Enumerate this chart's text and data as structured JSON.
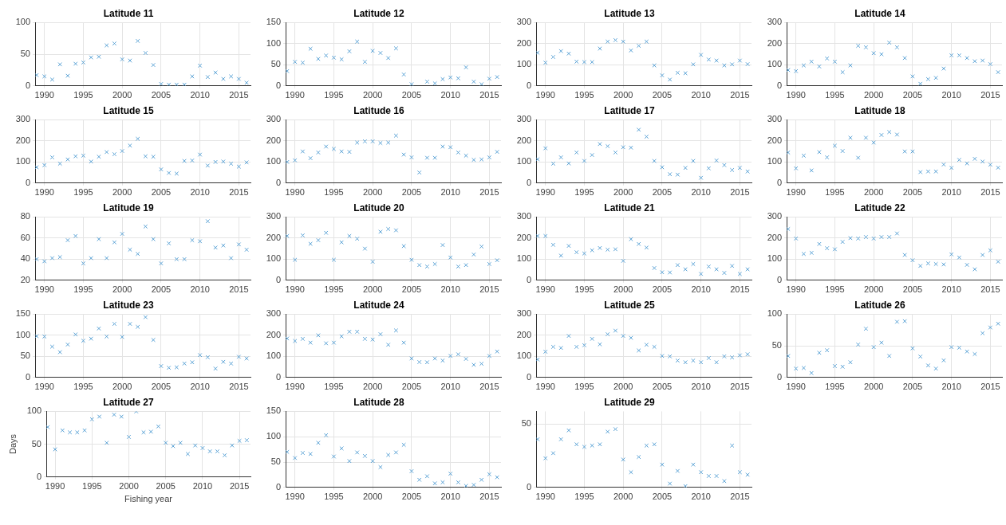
{
  "chart_data": [
    {
      "type": "scatter",
      "title": "Latitude 11",
      "x": [
        1989,
        1990,
        1991,
        1992,
        1993,
        1994,
        1995,
        1996,
        1997,
        1998,
        1999,
        2000,
        2001,
        2002,
        2003,
        2004,
        2005,
        2006,
        2007,
        2008,
        2009,
        2010,
        2011,
        2012,
        2013,
        2014,
        2015,
        2016
      ],
      "values": [
        17,
        15,
        10,
        34,
        16,
        35,
        37,
        45,
        46,
        64,
        67,
        42,
        40,
        71,
        52,
        33,
        3,
        2,
        2,
        2,
        15,
        32,
        14,
        21,
        11,
        15,
        11,
        5
      ],
      "color": "#5ba3d6",
      "marker": "cross",
      "xlim": [
        1988.8,
        2016.5
      ],
      "xticks": [
        1990,
        1995,
        2000,
        2005,
        2010,
        2015
      ],
      "ylim": [
        0,
        100
      ],
      "yticks": [
        0,
        50,
        100
      ],
      "grid": true
    },
    {
      "type": "scatter",
      "title": "Latitude 12",
      "x": [
        1989,
        1990,
        1991,
        1992,
        1993,
        1994,
        1995,
        1996,
        1997,
        1998,
        1999,
        2000,
        2001,
        2002,
        2003,
        2004,
        2005,
        2006,
        2007,
        2008,
        2009,
        2010,
        2011,
        2012,
        2013,
        2014,
        2015,
        2016
      ],
      "values": [
        35,
        57,
        55,
        88,
        64,
        72,
        67,
        63,
        82,
        105,
        57,
        83,
        78,
        66,
        89,
        27,
        4,
        null,
        10,
        6,
        16,
        20,
        18,
        44,
        10,
        4,
        17,
        21
      ],
      "color": "#5ba3d6",
      "marker": "cross",
      "xlim": [
        1988.8,
        2016.5
      ],
      "xticks": [
        1990,
        1995,
        2000,
        2005,
        2010,
        2015
      ],
      "ylim": [
        0,
        150
      ],
      "yticks": [
        0,
        50,
        100,
        150
      ],
      "grid": true
    },
    {
      "type": "scatter",
      "title": "Latitude 13",
      "x": [
        1989,
        1990,
        1991,
        1992,
        1993,
        1994,
        1995,
        1996,
        1997,
        1998,
        1999,
        2000,
        2001,
        2002,
        2003,
        2004,
        2005,
        2006,
        2007,
        2008,
        2009,
        2010,
        2011,
        2012,
        2013,
        2014,
        2015,
        2016
      ],
      "values": [
        157,
        110,
        137,
        165,
        153,
        115,
        113,
        113,
        177,
        210,
        217,
        210,
        168,
        190,
        210,
        97,
        50,
        30,
        62,
        60,
        102,
        147,
        125,
        120,
        97,
        102,
        120,
        103
      ],
      "color": "#5ba3d6",
      "marker": "cross",
      "xlim": [
        1988.8,
        2016.5
      ],
      "xticks": [
        1990,
        1995,
        2000,
        2005,
        2010,
        2015
      ],
      "ylim": [
        0,
        300
      ],
      "yticks": [
        0,
        100,
        200,
        300
      ],
      "grid": true
    },
    {
      "type": "scatter",
      "title": "Latitude 14",
      "x": [
        1989,
        1990,
        1991,
        1992,
        1993,
        1994,
        1995,
        1996,
        1997,
        1998,
        1999,
        2000,
        2001,
        2002,
        2003,
        2004,
        2005,
        2006,
        2007,
        2008,
        2009,
        2010,
        2011,
        2012,
        2013,
        2014,
        2015,
        2016
      ],
      "values": [
        75,
        70,
        97,
        115,
        92,
        130,
        115,
        65,
        97,
        190,
        183,
        155,
        150,
        205,
        183,
        132,
        45,
        10,
        32,
        38,
        82,
        145,
        145,
        132,
        117,
        120,
        103,
        65
      ],
      "color": "#5ba3d6",
      "marker": "cross",
      "xlim": [
        1988.8,
        2016.5
      ],
      "xticks": [
        1990,
        1995,
        2000,
        2005,
        2010,
        2015
      ],
      "ylim": [
        0,
        300
      ],
      "yticks": [
        0,
        100,
        200,
        300
      ],
      "grid": true
    },
    {
      "type": "scatter",
      "title": "Latitude 15",
      "x": [
        1989,
        1990,
        1991,
        1992,
        1993,
        1994,
        1995,
        1996,
        1997,
        1998,
        1999,
        2000,
        2001,
        2002,
        2003,
        2004,
        2005,
        2006,
        2007,
        2008,
        2009,
        2010,
        2011,
        2012,
        2013,
        2014,
        2015,
        2016
      ],
      "values": [
        75,
        85,
        122,
        92,
        112,
        127,
        130,
        102,
        125,
        147,
        137,
        152,
        178,
        210,
        127,
        125,
        65,
        48,
        45,
        105,
        107,
        135,
        83,
        100,
        102,
        92,
        78,
        98
      ],
      "color": "#5ba3d6",
      "marker": "cross",
      "xlim": [
        1988.8,
        2016.5
      ],
      "xticks": [
        1990,
        1995,
        2000,
        2005,
        2010,
        2015
      ],
      "ylim": [
        0,
        300
      ],
      "yticks": [
        0,
        100,
        200,
        300
      ],
      "grid": true
    },
    {
      "type": "scatter",
      "title": "Latitude 16",
      "x": [
        1989,
        1990,
        1991,
        1992,
        1993,
        1994,
        1995,
        1996,
        1997,
        1998,
        1999,
        2000,
        2001,
        2002,
        2003,
        2004,
        2005,
        2006,
        2007,
        2008,
        2009,
        2010,
        2011,
        2012,
        2013,
        2014,
        2015,
        2016
      ],
      "values": [
        100,
        108,
        150,
        118,
        145,
        173,
        162,
        150,
        148,
        192,
        198,
        198,
        190,
        192,
        225,
        135,
        122,
        50,
        120,
        120,
        173,
        170,
        145,
        130,
        110,
        112,
        122,
        148
      ],
      "color": "#5ba3d6",
      "marker": "cross",
      "xlim": [
        1988.8,
        2016.5
      ],
      "xticks": [
        1990,
        1995,
        2000,
        2005,
        2010,
        2015
      ],
      "ylim": [
        0,
        300
      ],
      "yticks": [
        0,
        100,
        200,
        300
      ],
      "grid": true
    },
    {
      "type": "scatter",
      "title": "Latitude 17",
      "x": [
        1989,
        1990,
        1991,
        1992,
        1993,
        1994,
        1995,
        1996,
        1997,
        1998,
        1999,
        2000,
        2001,
        2002,
        2003,
        2004,
        2005,
        2006,
        2007,
        2008,
        2009,
        2010,
        2011,
        2012,
        2013,
        2014,
        2015,
        2016
      ],
      "values": [
        113,
        165,
        92,
        122,
        93,
        145,
        105,
        133,
        185,
        175,
        145,
        170,
        168,
        253,
        220,
        105,
        75,
        42,
        40,
        72,
        105,
        25,
        70,
        107,
        85,
        62,
        72,
        55
      ],
      "color": "#5ba3d6",
      "marker": "cross",
      "xlim": [
        1988.8,
        2016.5
      ],
      "xticks": [
        1990,
        1995,
        2000,
        2005,
        2010,
        2015
      ],
      "ylim": [
        0,
        300
      ],
      "yticks": [
        0,
        100,
        200,
        300
      ],
      "grid": true
    },
    {
      "type": "scatter",
      "title": "Latitude 18",
      "x": [
        1989,
        1990,
        1991,
        1992,
        1993,
        1994,
        1995,
        1996,
        1997,
        1998,
        1999,
        2000,
        2001,
        2002,
        2003,
        2004,
        2005,
        2006,
        2007,
        2008,
        2009,
        2010,
        2011,
        2012,
        2013,
        2014,
        2015,
        2016
      ],
      "values": [
        145,
        70,
        130,
        60,
        147,
        122,
        177,
        152,
        215,
        120,
        215,
        192,
        228,
        242,
        230,
        150,
        150,
        52,
        55,
        55,
        88,
        72,
        110,
        93,
        115,
        102,
        87,
        73
      ],
      "color": "#5ba3d6",
      "marker": "cross",
      "xlim": [
        1988.8,
        2016.5
      ],
      "xticks": [
        1990,
        1995,
        2000,
        2005,
        2010,
        2015
      ],
      "ylim": [
        0,
        300
      ],
      "yticks": [
        0,
        100,
        200,
        300
      ],
      "grid": true
    },
    {
      "type": "scatter",
      "title": "Latitude 19",
      "x": [
        1989,
        1990,
        1991,
        1992,
        1993,
        1994,
        1995,
        1996,
        1997,
        1998,
        1999,
        2000,
        2001,
        2002,
        2003,
        2004,
        2005,
        2006,
        2007,
        2008,
        2009,
        2010,
        2011,
        2012,
        2013,
        2014,
        2015,
        2016
      ],
      "values": [
        40,
        38,
        41,
        42,
        58,
        62,
        36,
        41,
        59,
        41,
        56,
        64,
        49,
        45,
        71,
        59,
        36,
        55,
        40,
        40,
        58,
        57,
        76,
        51,
        53,
        41,
        54,
        49
      ],
      "color": "#5ba3d6",
      "marker": "cross",
      "xlim": [
        1988.8,
        2016.5
      ],
      "xticks": [
        1990,
        1995,
        2000,
        2005,
        2010,
        2015
      ],
      "ylim": [
        20,
        80
      ],
      "yticks": [
        20,
        40,
        60,
        80
      ],
      "grid": true
    },
    {
      "type": "scatter",
      "title": "Latitude 20",
      "x": [
        1989,
        1990,
        1991,
        1992,
        1993,
        1994,
        1995,
        1996,
        1997,
        1998,
        1999,
        2000,
        2001,
        2002,
        2003,
        2004,
        2005,
        2006,
        2007,
        2008,
        2009,
        2010,
        2011,
        2012,
        2013,
        2014,
        2015,
        2016
      ],
      "values": [
        210,
        97,
        213,
        173,
        190,
        225,
        97,
        180,
        210,
        197,
        150,
        88,
        230,
        243,
        237,
        162,
        97,
        72,
        65,
        77,
        167,
        108,
        65,
        72,
        122,
        160,
        77,
        95
      ],
      "color": "#5ba3d6",
      "marker": "cross",
      "xlim": [
        1988.8,
        2016.5
      ],
      "xticks": [
        1990,
        1995,
        2000,
        2005,
        2010,
        2015
      ],
      "ylim": [
        0,
        300
      ],
      "yticks": [
        0,
        100,
        200,
        300
      ],
      "grid": true
    },
    {
      "type": "scatter",
      "title": "Latitude 21",
      "x": [
        1989,
        1990,
        1991,
        1992,
        1993,
        1994,
        1995,
        1996,
        1997,
        1998,
        1999,
        2000,
        2001,
        2002,
        2003,
        2004,
        2005,
        2006,
        2007,
        2008,
        2009,
        2010,
        2011,
        2012,
        2013,
        2014,
        2015,
        2016
      ],
      "values": [
        210,
        210,
        168,
        117,
        163,
        133,
        127,
        142,
        153,
        145,
        147,
        92,
        195,
        172,
        155,
        58,
        38,
        37,
        72,
        52,
        77,
        30,
        65,
        52,
        35,
        68,
        30,
        52
      ],
      "color": "#5ba3d6",
      "marker": "cross",
      "xlim": [
        1988.8,
        2016.5
      ],
      "xticks": [
        1990,
        1995,
        2000,
        2005,
        2010,
        2015
      ],
      "ylim": [
        0,
        300
      ],
      "yticks": [
        0,
        100,
        200,
        300
      ],
      "grid": true
    },
    {
      "type": "scatter",
      "title": "Latitude 22",
      "x": [
        1989,
        1990,
        1991,
        1992,
        1993,
        1994,
        1995,
        1996,
        1997,
        1998,
        1999,
        2000,
        2001,
        2002,
        2003,
        2004,
        2005,
        2006,
        2007,
        2008,
        2009,
        2010,
        2011,
        2012,
        2013,
        2014,
        2015,
        2016
      ],
      "values": [
        243,
        198,
        125,
        130,
        172,
        152,
        147,
        182,
        200,
        198,
        205,
        198,
        205,
        205,
        222,
        120,
        95,
        68,
        80,
        77,
        75,
        123,
        108,
        73,
        52,
        120,
        142,
        88
      ],
      "color": "#5ba3d6",
      "marker": "cross",
      "xlim": [
        1988.8,
        2016.5
      ],
      "xticks": [
        1990,
        1995,
        2000,
        2005,
        2010,
        2015
      ],
      "ylim": [
        0,
        300
      ],
      "yticks": [
        0,
        100,
        200,
        300
      ],
      "grid": true
    },
    {
      "type": "scatter",
      "title": "Latitude 23",
      "x": [
        1989,
        1990,
        1991,
        1992,
        1993,
        1994,
        1995,
        1996,
        1997,
        1998,
        1999,
        2000,
        2001,
        2002,
        2003,
        2004,
        2005,
        2006,
        2007,
        2008,
        2009,
        2010,
        2011,
        2012,
        2013,
        2014,
        2015,
        2016
      ],
      "values": [
        98,
        97,
        73,
        60,
        78,
        102,
        87,
        92,
        116,
        97,
        127,
        96,
        127,
        120,
        143,
        89,
        27,
        23,
        24,
        33,
        36,
        53,
        48,
        21,
        37,
        33,
        49,
        45
      ],
      "color": "#5ba3d6",
      "marker": "cross",
      "xlim": [
        1988.8,
        2016.5
      ],
      "xticks": [
        1990,
        1995,
        2000,
        2005,
        2010,
        2015
      ],
      "ylim": [
        0,
        150
      ],
      "yticks": [
        0,
        50,
        100,
        150
      ],
      "grid": true
    },
    {
      "type": "scatter",
      "title": "Latitude 24",
      "x": [
        1989,
        1990,
        1991,
        1992,
        1993,
        1994,
        1995,
        1996,
        1997,
        1998,
        1999,
        2000,
        2001,
        2002,
        2003,
        2004,
        2005,
        2006,
        2007,
        2008,
        2009,
        2010,
        2011,
        2012,
        2013,
        2014,
        2015,
        2016
      ],
      "values": [
        185,
        173,
        183,
        165,
        200,
        162,
        165,
        195,
        217,
        217,
        183,
        180,
        205,
        155,
        223,
        165,
        90,
        73,
        72,
        90,
        80,
        102,
        110,
        88,
        60,
        65,
        102,
        123
      ],
      "color": "#5ba3d6",
      "marker": "cross",
      "xlim": [
        1988.8,
        2016.5
      ],
      "xticks": [
        1990,
        1995,
        2000,
        2005,
        2010,
        2015
      ],
      "ylim": [
        0,
        300
      ],
      "yticks": [
        0,
        100,
        200,
        300
      ],
      "grid": true
    },
    {
      "type": "scatter",
      "title": "Latitude 25",
      "x": [
        1989,
        1990,
        1991,
        1992,
        1993,
        1994,
        1995,
        1996,
        1997,
        1998,
        1999,
        2000,
        2001,
        2002,
        2003,
        2004,
        2005,
        2006,
        2007,
        2008,
        2009,
        2010,
        2011,
        2012,
        2013,
        2014,
        2015,
        2016
      ],
      "values": [
        85,
        122,
        145,
        140,
        197,
        145,
        153,
        183,
        157,
        205,
        222,
        197,
        188,
        128,
        155,
        145,
        102,
        100,
        80,
        72,
        80,
        72,
        92,
        72,
        100,
        95,
        105,
        110
      ],
      "color": "#5ba3d6",
      "marker": "cross",
      "xlim": [
        1988.8,
        2016.5
      ],
      "xticks": [
        1990,
        1995,
        2000,
        2005,
        2010,
        2015
      ],
      "ylim": [
        0,
        300
      ],
      "yticks": [
        0,
        100,
        200,
        300
      ],
      "grid": true
    },
    {
      "type": "scatter",
      "title": "Latitude 26",
      "x": [
        1989,
        1990,
        1991,
        1992,
        1993,
        1994,
        1995,
        1996,
        1997,
        1998,
        1999,
        2000,
        2001,
        2002,
        2003,
        2004,
        2005,
        2006,
        2007,
        2008,
        2009,
        2010,
        2011,
        2012,
        2013,
        2014,
        2015,
        2016
      ],
      "values": [
        34,
        14,
        15,
        7,
        39,
        43,
        18,
        17,
        24,
        52,
        77,
        48,
        55,
        34,
        88,
        89,
        46,
        33,
        19,
        14,
        27,
        48,
        47,
        41,
        37,
        70,
        79,
        85
      ],
      "color": "#5ba3d6",
      "marker": "cross",
      "xlim": [
        1988.8,
        2016.5
      ],
      "xticks": [
        1990,
        1995,
        2000,
        2005,
        2010,
        2015
      ],
      "ylim": [
        0,
        100
      ],
      "yticks": [
        0,
        50,
        100
      ],
      "grid": true
    },
    {
      "type": "scatter",
      "title": "Latitude 27",
      "xlabel": "Fishing year",
      "ylabel": "Days",
      "x": [
        1989,
        1990,
        1991,
        1992,
        1993,
        1994,
        1995,
        1996,
        1997,
        1998,
        1999,
        2000,
        2001,
        2002,
        2003,
        2004,
        2005,
        2006,
        2007,
        2008,
        2009,
        2010,
        2011,
        2012,
        2013,
        2014,
        2015,
        2016
      ],
      "values": [
        76,
        42,
        71,
        68,
        68,
        71,
        88,
        92,
        52,
        95,
        92,
        61,
        100,
        68,
        69,
        77,
        52,
        47,
        52,
        35,
        48,
        44,
        39,
        39,
        33,
        48,
        55,
        56
      ],
      "color": "#5ba3d6",
      "marker": "cross",
      "xlim": [
        1988.8,
        2016.5
      ],
      "xticks": [
        1990,
        1995,
        2000,
        2005,
        2010,
        2015
      ],
      "ylim": [
        0,
        100
      ],
      "yticks": [
        0,
        50,
        100
      ],
      "grid": true
    },
    {
      "type": "scatter",
      "title": "Latitude 28",
      "x": [
        1989,
        1990,
        1991,
        1992,
        1993,
        1994,
        1995,
        1996,
        1997,
        1998,
        1999,
        2000,
        2001,
        2002,
        2003,
        2004,
        2005,
        2006,
        2007,
        2008,
        2009,
        2010,
        2011,
        2012,
        2013,
        2014,
        2015,
        2016
      ],
      "values": [
        70,
        58,
        68,
        66,
        88,
        103,
        61,
        77,
        52,
        69,
        62,
        52,
        40,
        64,
        69,
        84,
        32,
        15,
        22,
        8,
        10,
        27,
        10,
        3,
        5,
        15,
        26,
        20
      ],
      "color": "#5ba3d6",
      "marker": "cross",
      "xlim": [
        1988.8,
        2016.5
      ],
      "xticks": [
        1990,
        1995,
        2000,
        2005,
        2010,
        2015
      ],
      "ylim": [
        0,
        150
      ],
      "yticks": [
        0,
        50,
        100,
        150
      ],
      "grid": true
    },
    {
      "type": "scatter",
      "title": "Latitude 29",
      "x": [
        1989,
        1990,
        1991,
        1992,
        1993,
        1994,
        1995,
        1996,
        1997,
        1998,
        1999,
        2000,
        2001,
        2002,
        2003,
        2004,
        2005,
        2006,
        2007,
        2008,
        2009,
        2010,
        2011,
        2012,
        2013,
        2014,
        2015,
        2016
      ],
      "values": [
        38,
        23,
        27,
        38,
        45,
        34,
        32,
        33,
        34,
        44,
        46,
        22,
        12,
        24,
        33,
        34,
        18,
        3,
        13,
        1,
        18,
        12,
        9,
        9,
        5,
        33,
        12,
        10
      ],
      "color": "#5ba3d6",
      "marker": "cross",
      "xlim": [
        1988.8,
        2016.5
      ],
      "xticks": [
        1990,
        1995,
        2000,
        2005,
        2010,
        2015
      ],
      "ylim": [
        0,
        60
      ],
      "yticks": [
        0,
        50
      ],
      "grid": true
    }
  ]
}
